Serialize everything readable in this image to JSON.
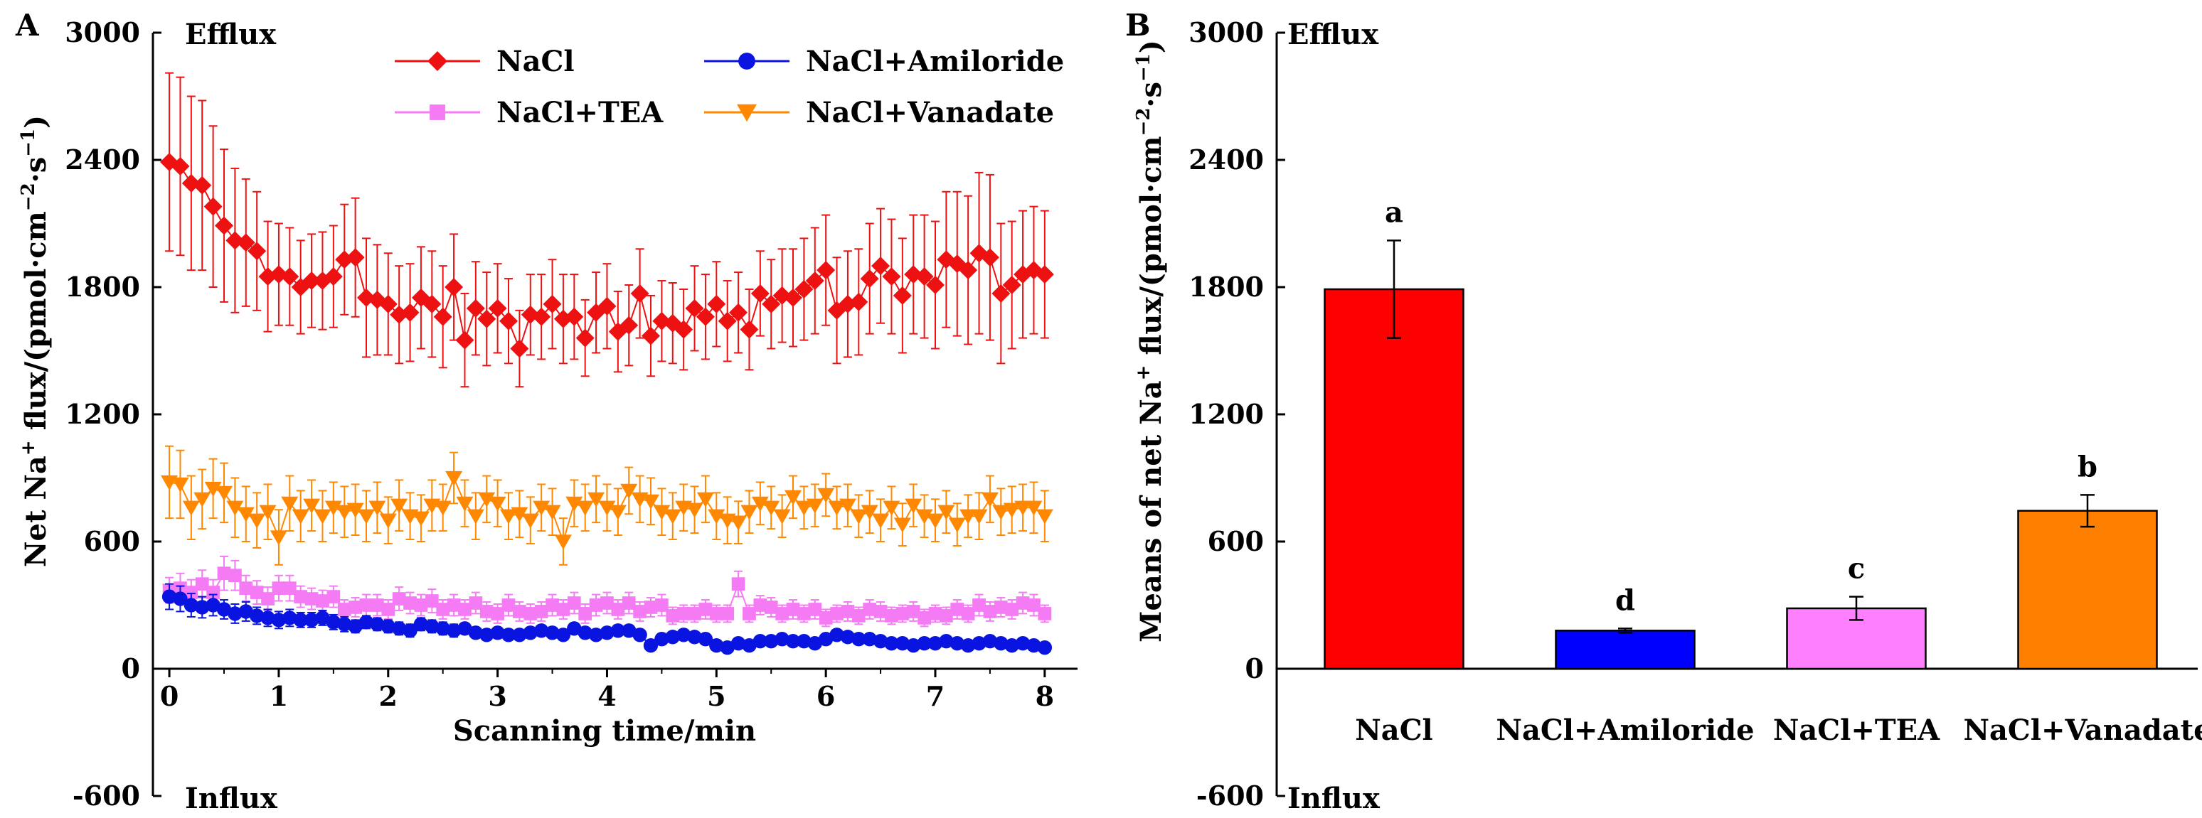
{
  "chart_data": [
    {
      "panel_label": "A",
      "type": "line",
      "xlabel": "Scanning time/min",
      "ylabel": {
        "base": "Net Na",
        "sup1": "+",
        "mid": " flux/(pmol·cm",
        "sup2": "−2",
        "dot": "·s",
        "sup3": "−1",
        "end": ")"
      },
      "xlim": [
        -0.15,
        8.3
      ],
      "ylim": [
        -600,
        3000
      ],
      "xticks": [
        0,
        1,
        2,
        3,
        4,
        5,
        6,
        7,
        8
      ],
      "yticks": [
        -600,
        0,
        600,
        1200,
        1800,
        2400,
        3000
      ],
      "annotations": {
        "top": "Efflux",
        "bottom": "Influx"
      },
      "legend_position": "top-right",
      "series": [
        {
          "name": "NaCl",
          "color": "#ee1111",
          "marker": "diamond",
          "values": [
            2390,
            2370,
            2290,
            2280,
            2180,
            2090,
            2020,
            2010,
            1970,
            1850,
            1860,
            1850,
            1800,
            1830,
            1830,
            1850,
            1930,
            1940,
            1750,
            1740,
            1720,
            1670,
            1680,
            1750,
            1720,
            1660,
            1800,
            1550,
            1700,
            1650,
            1700,
            1640,
            1510,
            1670,
            1660,
            1720,
            1650,
            1660,
            1560,
            1680,
            1710,
            1590,
            1620,
            1770,
            1570,
            1640,
            1630,
            1600,
            1700,
            1660,
            1720,
            1640,
            1680,
            1600,
            1770,
            1720,
            1760,
            1750,
            1790,
            1830,
            1880,
            1690,
            1720,
            1730,
            1840,
            1900,
            1850,
            1760,
            1860,
            1850,
            1810,
            1930,
            1910,
            1880,
            1960,
            1940,
            1770,
            1810,
            1860,
            1880,
            1860
          ],
          "errors": [
            420,
            420,
            410,
            400,
            380,
            360,
            340,
            300,
            280,
            260,
            240,
            230,
            220,
            220,
            230,
            240,
            260,
            280,
            280,
            260,
            240,
            230,
            230,
            240,
            250,
            240,
            250,
            220,
            220,
            220,
            210,
            200,
            180,
            190,
            200,
            210,
            210,
            200,
            180,
            190,
            200,
            190,
            190,
            210,
            190,
            190,
            190,
            190,
            200,
            200,
            200,
            190,
            190,
            190,
            200,
            210,
            220,
            230,
            240,
            250,
            260,
            250,
            250,
            250,
            260,
            270,
            270,
            270,
            280,
            290,
            300,
            320,
            340,
            350,
            380,
            390,
            330,
            300,
            300,
            300,
            300
          ]
        },
        {
          "name": "NaCl+Amiloride",
          "color": "#0a14e0",
          "marker": "circle",
          "values": [
            340,
            330,
            300,
            290,
            300,
            280,
            260,
            270,
            250,
            240,
            230,
            240,
            230,
            230,
            240,
            220,
            210,
            200,
            220,
            210,
            200,
            190,
            180,
            210,
            200,
            190,
            180,
            190,
            170,
            160,
            170,
            160,
            160,
            170,
            180,
            170,
            160,
            190,
            170,
            160,
            170,
            180,
            180,
            160,
            110,
            140,
            150,
            160,
            150,
            140,
            110,
            100,
            120,
            110,
            130,
            130,
            140,
            130,
            130,
            120,
            140,
            160,
            150,
            140,
            140,
            130,
            120,
            120,
            110,
            120,
            120,
            130,
            120,
            110,
            120,
            130,
            120,
            110,
            120,
            110,
            100
          ],
          "errors": [
            60,
            60,
            55,
            50,
            50,
            45,
            45,
            45,
            40,
            40,
            40,
            40,
            35,
            35,
            35,
            35,
            35,
            30,
            30,
            30,
            30,
            30,
            30,
            30,
            30,
            30,
            30,
            25,
            25,
            25,
            25,
            25,
            25,
            25,
            25,
            25,
            25,
            25,
            25,
            25,
            25,
            25,
            25,
            25,
            25,
            25,
            25,
            25,
            20,
            20,
            20,
            20,
            20,
            20,
            20,
            20,
            20,
            20,
            20,
            20,
            20,
            20,
            20,
            20,
            20,
            20,
            20,
            20,
            20,
            20,
            20,
            20,
            20,
            20,
            20,
            20,
            20,
            20,
            20,
            20,
            20
          ]
        },
        {
          "name": "NaCl+TEA",
          "color": "#f47bf4",
          "marker": "square",
          "values": [
            370,
            380,
            360,
            400,
            360,
            450,
            440,
            380,
            360,
            330,
            380,
            380,
            340,
            330,
            320,
            340,
            280,
            290,
            300,
            300,
            280,
            330,
            310,
            300,
            320,
            280,
            300,
            280,
            310,
            270,
            260,
            300,
            270,
            260,
            270,
            300,
            280,
            310,
            260,
            300,
            310,
            280,
            310,
            270,
            290,
            300,
            250,
            260,
            260,
            280,
            260,
            260,
            400,
            260,
            300,
            290,
            260,
            280,
            260,
            280,
            240,
            260,
            270,
            250,
            280,
            270,
            250,
            260,
            270,
            240,
            260,
            250,
            280,
            260,
            300,
            270,
            290,
            280,
            310,
            300,
            260
          ],
          "errors": [
            60,
            70,
            60,
            65,
            60,
            80,
            70,
            60,
            55,
            55,
            60,
            60,
            50,
            50,
            50,
            50,
            45,
            45,
            50,
            50,
            45,
            55,
            50,
            50,
            55,
            45,
            50,
            45,
            50,
            45,
            45,
            50,
            45,
            45,
            45,
            50,
            45,
            50,
            45,
            50,
            50,
            45,
            50,
            45,
            45,
            50,
            40,
            40,
            40,
            45,
            40,
            40,
            60,
            40,
            45,
            45,
            40,
            45,
            40,
            45,
            40,
            40,
            45,
            40,
            45,
            45,
            40,
            40,
            45,
            40,
            40,
            40,
            45,
            40,
            50,
            45,
            45,
            45,
            50,
            50,
            40
          ]
        },
        {
          "name": "NaCl+Vanadate",
          "color": "#ff8800",
          "marker": "triangle-down",
          "values": [
            880,
            870,
            760,
            800,
            850,
            830,
            760,
            730,
            700,
            740,
            620,
            780,
            720,
            770,
            720,
            760,
            740,
            750,
            720,
            760,
            700,
            770,
            720,
            710,
            770,
            760,
            900,
            780,
            720,
            800,
            780,
            720,
            730,
            700,
            760,
            740,
            600,
            780,
            760,
            800,
            760,
            740,
            840,
            800,
            790,
            740,
            720,
            760,
            750,
            800,
            720,
            700,
            690,
            740,
            780,
            760,
            720,
            810,
            760,
            770,
            820,
            760,
            770,
            720,
            740,
            700,
            760,
            680,
            770,
            720,
            700,
            740,
            680,
            720,
            720,
            800,
            740,
            750,
            760,
            760,
            720
          ],
          "errors": [
            170,
            160,
            150,
            140,
            140,
            140,
            140,
            130,
            130,
            130,
            130,
            130,
            120,
            120,
            120,
            120,
            120,
            120,
            120,
            120,
            110,
            120,
            110,
            110,
            120,
            110,
            120,
            110,
            110,
            110,
            110,
            110,
            110,
            110,
            110,
            110,
            110,
            110,
            110,
            110,
            110,
            110,
            110,
            110,
            110,
            110,
            110,
            110,
            110,
            110,
            110,
            110,
            100,
            100,
            100,
            100,
            100,
            100,
            100,
            100,
            100,
            100,
            100,
            100,
            100,
            100,
            100,
            100,
            100,
            100,
            100,
            100,
            100,
            100,
            110,
            110,
            110,
            110,
            110,
            120,
            120
          ]
        }
      ]
    },
    {
      "panel_label": "B",
      "type": "bar",
      "ylabel": {
        "base": "Means of net Na",
        "sup1": "+",
        "mid": " flux/(pmol·cm",
        "sup2": "−2",
        "dot": "·s",
        "sup3": "−1",
        "end": ")"
      },
      "ylim": [
        -600,
        3000
      ],
      "yticks": [
        -600,
        0,
        600,
        1200,
        1800,
        2400,
        3000
      ],
      "annotations": {
        "top": "Efflux",
        "bottom": "Influx"
      },
      "categories": [
        "NaCl",
        "NaCl+Amiloride",
        "NaCl+TEA",
        "NaCl+Vanadate"
      ],
      "values": [
        1790,
        180,
        285,
        745
      ],
      "errors": [
        230,
        10,
        55,
        75
      ],
      "significance": [
        "a",
        "d",
        "c",
        "b"
      ],
      "colors": [
        "#ff0000",
        "#0000ff",
        "#ff80ff",
        "#ff8000"
      ]
    }
  ]
}
